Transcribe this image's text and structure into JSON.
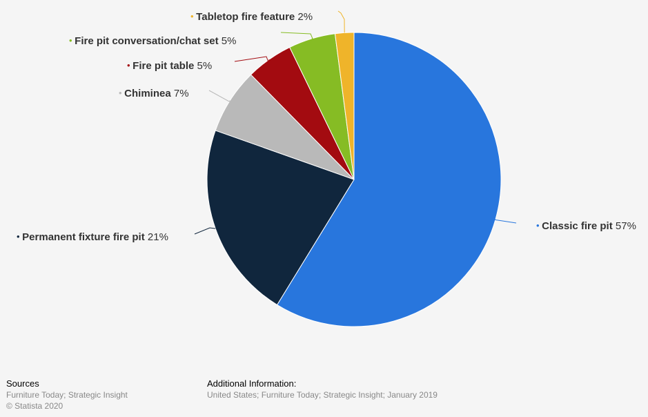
{
  "chart_data": {
    "type": "pie",
    "unit": "%",
    "slices": [
      {
        "label": "Classic fire pit",
        "value": 57,
        "color": "#2876dd"
      },
      {
        "label": "Permanent fixture fire pit",
        "value": 21,
        "color": "#10263d"
      },
      {
        "label": "Chiminea",
        "value": 7,
        "color": "#b9b9b9"
      },
      {
        "label": "Fire pit table",
        "value": 5,
        "color": "#a30b10"
      },
      {
        "label": "Fire pit conversation/chat set",
        "value": 5,
        "color": "#86bc24"
      },
      {
        "label": "Tabletop fire feature",
        "value": 2,
        "color": "#efb42a"
      }
    ]
  },
  "footer": {
    "sources_heading": "Sources",
    "sources_line1": "Furniture Today; Strategic Insight",
    "sources_line2": "© Statista 2020",
    "additional_heading": "Additional Information:",
    "additional_line1": "United States; Furniture Today; Strategic Insight; January 2019"
  }
}
